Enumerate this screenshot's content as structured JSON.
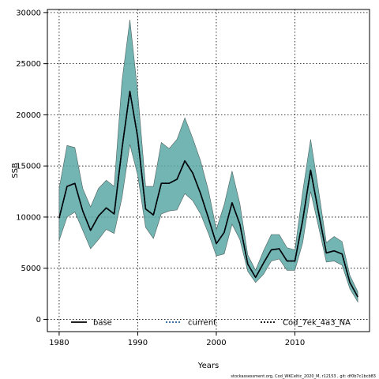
{
  "chart_data": {
    "type": "area",
    "xlabel": "Years",
    "ylabel": "SSB",
    "xlim": [
      1978.5,
      2019.5
    ],
    "ylim": [
      -1200,
      30300
    ],
    "xticks": [
      1980,
      1990,
      2000,
      2010
    ],
    "yticks": [
      0,
      5000,
      10000,
      15000,
      20000,
      25000,
      30000
    ],
    "grid": true,
    "legend_position": "bottom",
    "caption": "stockassessment.org, Cod_WKCeltic_2020_M, r12153 , git: df0b7c1bcb83",
    "colors": {
      "band": "#5aa8a4",
      "line": "#000000",
      "current_line": "#1f5fa0"
    },
    "x": [
      1980,
      1981,
      1982,
      1983,
      1984,
      1985,
      1986,
      1987,
      1988,
      1989,
      1990,
      1991,
      1992,
      1993,
      1994,
      1995,
      1996,
      1997,
      1998,
      1999,
      2000,
      2001,
      2002,
      2003,
      2004,
      2005,
      2006,
      2007,
      2008,
      2009,
      2010,
      2011,
      2012,
      2013,
      2014,
      2015,
      2016,
      2017,
      2018
    ],
    "series": [
      {
        "name": "base",
        "style": "solid",
        "values": [
          9900,
          13000,
          13300,
          10600,
          8700,
          10100,
          10900,
          10300,
          16700,
          22300,
          17800,
          10800,
          10200,
          13300,
          13300,
          13700,
          15500,
          14300,
          12300,
          9900,
          7400,
          8500,
          11400,
          9300,
          5400,
          4100,
          5500,
          6800,
          6900,
          5700,
          5700,
          9700,
          14600,
          10500,
          6500,
          6700,
          6400,
          3600,
          2200
        ]
      },
      {
        "name": "current",
        "style": "dotted",
        "values": [
          9900,
          13000,
          13300,
          10600,
          8700,
          10100,
          10900,
          10300,
          16700,
          22300,
          17800,
          10800,
          10200,
          13300,
          13300,
          13700,
          15500,
          14300,
          12300,
          9900,
          7400,
          8500,
          11400,
          9300,
          5400,
          4100,
          5500,
          6800,
          6900,
          5700,
          5700,
          9700,
          14600,
          10500,
          6500,
          6700,
          6400,
          3600,
          2200
        ]
      },
      {
        "name": "Cod_7ek_4a3_NA",
        "style": "dotted",
        "values": [
          9900,
          13000,
          13300,
          10600,
          8700,
          10100,
          10900,
          10300,
          16700,
          22300,
          17800,
          10800,
          10200,
          13300,
          13300,
          13700,
          15500,
          14300,
          12300,
          9900,
          7400,
          8500,
          11400,
          9300,
          5400,
          4100,
          5500,
          6800,
          6900,
          5700,
          5700,
          9700,
          14600,
          10500,
          6500,
          6700,
          6400,
          3600,
          2200
        ]
      }
    ],
    "band": {
      "upper": [
        12800,
        17000,
        16800,
        12800,
        11000,
        12800,
        13600,
        13000,
        23300,
        29300,
        22200,
        13000,
        13000,
        17300,
        16700,
        17600,
        19700,
        17700,
        15500,
        12600,
        8800,
        11200,
        14500,
        11300,
        6300,
        4800,
        6700,
        8300,
        8300,
        7000,
        6800,
        12500,
        17600,
        12700,
        7500,
        8100,
        7600,
        4300,
        2700
      ],
      "lower": [
        7700,
        10000,
        10500,
        8700,
        6900,
        7800,
        8800,
        8400,
        11900,
        17100,
        14100,
        9000,
        7900,
        10300,
        10600,
        10700,
        12300,
        11600,
        10300,
        8400,
        6200,
        6400,
        9300,
        7800,
        4700,
        3600,
        4400,
        5700,
        5900,
        4800,
        4800,
        7500,
        12500,
        9100,
        5600,
        5700,
        5300,
        3000,
        1700
      ]
    }
  }
}
